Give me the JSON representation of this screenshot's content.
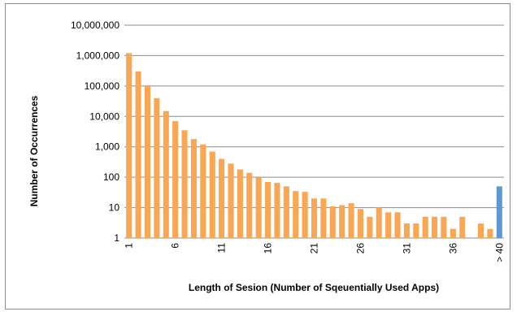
{
  "chart_data": {
    "type": "bar",
    "title": "",
    "xlabel": "Length of Sesion (Number of Sqeuentially Used Apps)",
    "ylabel": "Number of Occurrences",
    "y_scale": "log",
    "ylim": [
      1,
      10000000
    ],
    "y_ticks": [
      "1",
      "10",
      "100",
      "1,000",
      "10,000",
      "100,000",
      "1,000,000",
      "10,000,000"
    ],
    "y_tick_values": [
      1,
      10,
      100,
      1000,
      10000,
      100000,
      1000000,
      10000000
    ],
    "grid": "horizontal",
    "legend": "none",
    "colors": {
      "bar": "#f9a655",
      "highlight": "#5b9bd5",
      "grid": "#8c8c8c"
    },
    "categories": [
      "1",
      "2",
      "3",
      "4",
      "5",
      "6",
      "7",
      "8",
      "9",
      "10",
      "11",
      "12",
      "13",
      "14",
      "15",
      "16",
      "17",
      "18",
      "19",
      "20",
      "21",
      "22",
      "23",
      "24",
      "25",
      "26",
      "27",
      "28",
      "29",
      "30",
      "31",
      "32",
      "33",
      "34",
      "35",
      "36",
      "37",
      "38",
      "39",
      "40",
      "> 40"
    ],
    "values": [
      1200000,
      300000,
      100000,
      40000,
      15000,
      7000,
      3500,
      1800,
      1200,
      700,
      400,
      280,
      180,
      140,
      100,
      70,
      65,
      50,
      35,
      33,
      20,
      20,
      11,
      12,
      14,
      9,
      5,
      10,
      7,
      7,
      3,
      3,
      5,
      5,
      5,
      2,
      5,
      0,
      3,
      2,
      50
    ],
    "x_tick_labels": [
      "1",
      "6",
      "11",
      "16",
      "21",
      "26",
      "31",
      "36",
      "> 40"
    ],
    "x_tick_indices": [
      0,
      5,
      10,
      15,
      20,
      25,
      30,
      35,
      40
    ],
    "highlight_index": 40
  }
}
